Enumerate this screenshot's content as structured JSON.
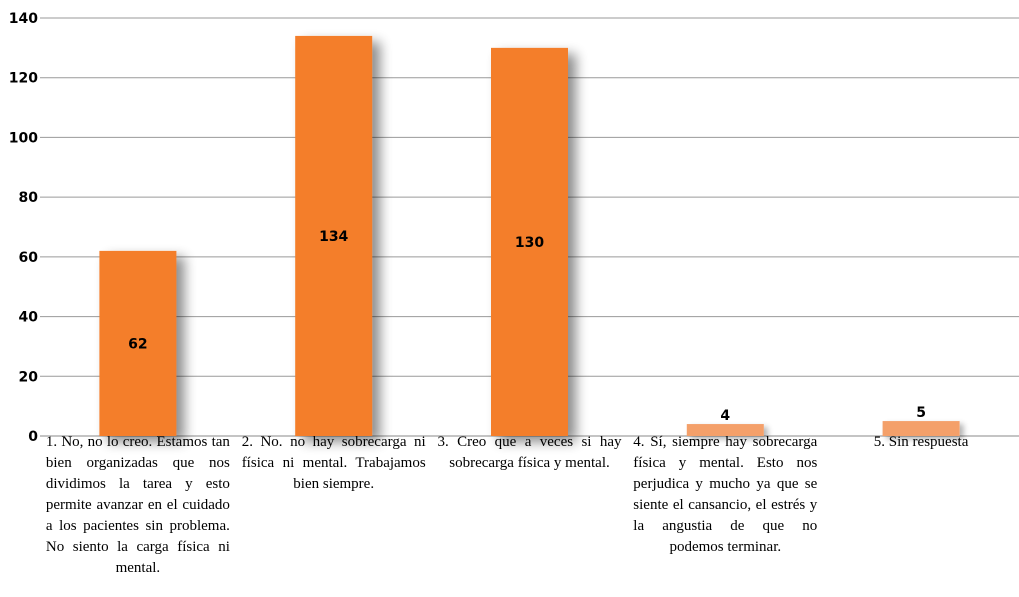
{
  "chart_data": {
    "type": "bar",
    "title": "",
    "xlabel": "",
    "ylabel": "",
    "ylim": [
      0,
      140
    ],
    "yticks": [
      0,
      20,
      40,
      60,
      80,
      100,
      120,
      140
    ],
    "grid": true,
    "legend": "none",
    "bar_color": "#f47e2a",
    "categories": [
      "1. No, no lo creo. Estamos tan bien organizadas que nos dividimos la tarea y esto permite avanzar en el cuidado a los pacientes sin problema. No siento la carga física ni mental.",
      "2. No. no hay sobrecarga ni física ni mental. Trabajamos bien siempre.",
      "3. Creo que a veces si hay sobrecarga física y mental.",
      "4. Sí, siempre hay sobrecarga física y mental. Esto nos perjudica y mucho ya que se siente el cansancio, el estrés y la angustia de que no podemos terminar.",
      "5. Sin respuesta"
    ],
    "values": [
      62,
      134,
      130,
      4,
      5
    ],
    "data_labels": [
      "62",
      "134",
      "130",
      "4",
      "5"
    ]
  }
}
